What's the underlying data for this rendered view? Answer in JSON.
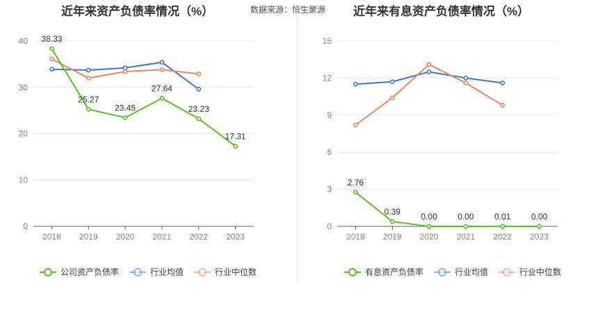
{
  "source_label": "数据来源：恒生聚源",
  "chart_data": [
    {
      "type": "line",
      "title": "近年来资产负债率情况（%）",
      "x": [
        "2018",
        "2019",
        "2020",
        "2021",
        "2022",
        "2023"
      ],
      "y_ticks": [
        "0",
        "10",
        "20",
        "30",
        "40"
      ],
      "ylim": [
        0,
        40
      ],
      "series": [
        {
          "name": "公司资产负债率",
          "color": "#52c41a",
          "values": [
            38.33,
            25.27,
            23.45,
            27.64,
            23.23,
            17.31
          ],
          "labels": [
            "38.33",
            "25.27",
            "23.45",
            "27.64",
            "23.23",
            "17.31"
          ]
        },
        {
          "name": "行业均值",
          "color": "#3b77db",
          "values": [
            33.9,
            33.7,
            34.2,
            35.4,
            29.6,
            null
          ]
        },
        {
          "name": "行业中位数",
          "color": "#f0845a",
          "values": [
            36.1,
            32.0,
            33.4,
            33.8,
            32.9,
            null
          ]
        }
      ],
      "legend_position": "bottom-left"
    },
    {
      "type": "line",
      "title": "近年来有息资产负债率情况（%）",
      "x": [
        "2018",
        "2019",
        "2020",
        "2021",
        "2022",
        "2023"
      ],
      "y_ticks": [
        "0",
        "3",
        "6",
        "9",
        "12",
        "15"
      ],
      "ylim": [
        0,
        15
      ],
      "series": [
        {
          "name": "有息资产负债率",
          "color": "#52c41a",
          "values": [
            2.76,
            0.39,
            0.0,
            0.0,
            0.01,
            0.0
          ],
          "labels": [
            "2.76",
            "0.39",
            "0.00",
            "0.00",
            "0.01",
            "0.00"
          ]
        },
        {
          "name": "行业均值",
          "color": "#3b77db",
          "values": [
            11.5,
            11.7,
            12.5,
            12.0,
            11.6,
            null
          ]
        },
        {
          "name": "行业中位数",
          "color": "#f0845a",
          "values": [
            8.2,
            10.4,
            13.1,
            11.6,
            9.8,
            null
          ]
        }
      ],
      "legend_position": "bottom-left"
    }
  ]
}
